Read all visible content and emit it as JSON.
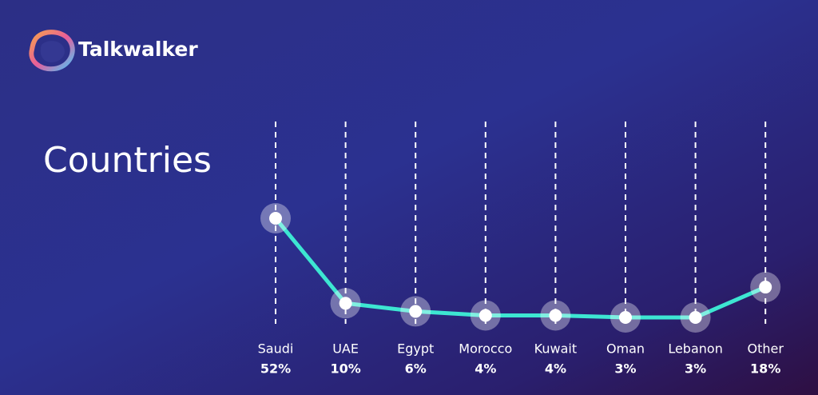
{
  "brand": "Talkwalker",
  "chart_data": {
    "type": "line",
    "title": "Countries",
    "categories": [
      "Saudi",
      "UAE",
      "Egypt",
      "Morocco",
      "Kuwait",
      "Oman",
      "Lebanon",
      "Other"
    ],
    "values": [
      52,
      10,
      6,
      4,
      4,
      3,
      3,
      18
    ],
    "value_labels": [
      "52%",
      "10%",
      "6%",
      "4%",
      "4%",
      "3%",
      "3%",
      "18%"
    ],
    "color": "#3de6d2"
  }
}
